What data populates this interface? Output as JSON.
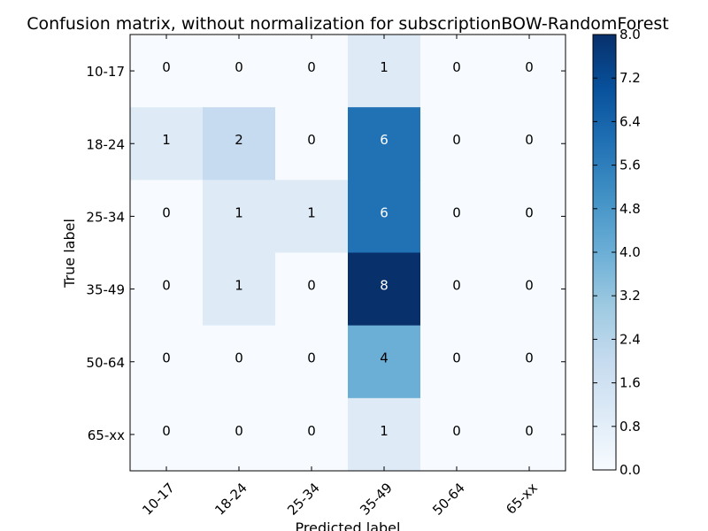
{
  "chart_data": {
    "type": "heatmap",
    "title": "Confusion matrix, without normalization for subscriptionBOW-RandomForest",
    "xlabel": "Predicted label",
    "ylabel": "True label",
    "x_categories": [
      "10-17",
      "18-24",
      "25-34",
      "35-49",
      "50-64",
      "65-xx"
    ],
    "y_categories": [
      "10-17",
      "18-24",
      "25-34",
      "35-49",
      "50-64",
      "65-xx"
    ],
    "values": [
      [
        0,
        0,
        0,
        1,
        0,
        0
      ],
      [
        1,
        2,
        0,
        6,
        0,
        0
      ],
      [
        0,
        1,
        1,
        6,
        0,
        0
      ],
      [
        0,
        1,
        0,
        8,
        0,
        0
      ],
      [
        0,
        0,
        0,
        4,
        0,
        0
      ],
      [
        0,
        0,
        0,
        1,
        0,
        0
      ]
    ],
    "colormap": "Blues",
    "colorbar": {
      "range": [
        0,
        8
      ],
      "ticks": [
        "0.0",
        "0.8",
        "1.6",
        "2.4",
        "3.2",
        "4.0",
        "4.8",
        "5.6",
        "6.4",
        "7.2",
        "8.0"
      ]
    }
  }
}
